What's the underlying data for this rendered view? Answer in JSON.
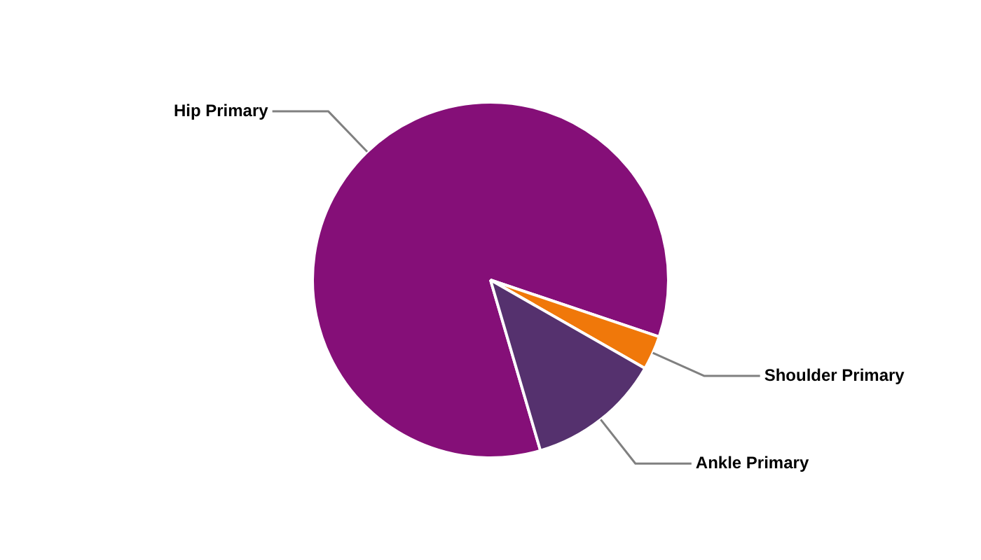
{
  "chart_data": {
    "type": "pie",
    "categories": [
      "Hip Primary",
      "Shoulder Primary",
      "Ankle Primary"
    ],
    "values": [
      84.7,
      3.1,
      12.2
    ],
    "colors": [
      "#850f78",
      "#f0780a",
      "#55316e"
    ]
  }
}
